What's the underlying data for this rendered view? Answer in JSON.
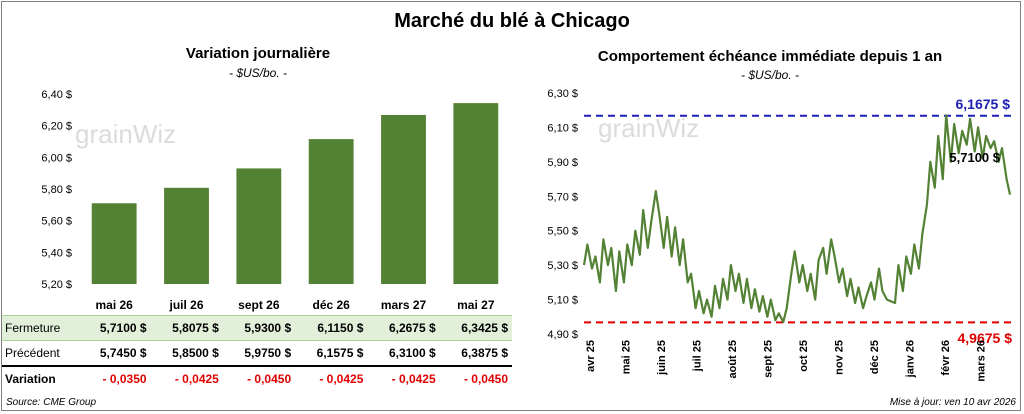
{
  "title": "Marché du blé à Chicago",
  "colors": {
    "bar": "#548235",
    "line": "#548235",
    "max_line": "#1f1fb4",
    "min_line": "#e00000",
    "fermeture_bg": "#e2efd9",
    "negative": "#e00000"
  },
  "watermark": {
    "left": "grainWiz",
    "right": "grainWiz"
  },
  "left_chart": {
    "title": "Variation journalière",
    "subtitle": "- $US/bo. -",
    "ticks": [
      "6,40 $",
      "6,20 $",
      "6,00 $",
      "5,80 $",
      "5,60 $",
      "5,40 $",
      "5,20 $"
    ]
  },
  "right_chart": {
    "title": "Comportement  échéance immédiate depuis 1 an",
    "subtitle": "- $US/bo. -",
    "ticks": [
      "6,30 $",
      "6,10 $",
      "5,90 $",
      "5,70 $",
      "5,50 $",
      "5,30 $",
      "5,10 $",
      "4,90 $"
    ],
    "max_label": "6,1675  $",
    "min_label": "4,9675  $",
    "last_label": "5,7100 $"
  },
  "chart_data": [
    {
      "type": "bar",
      "title": "Variation journalière",
      "subtitle": "- $US/bo. -",
      "categories": [
        "mai 26",
        "juil 26",
        "sept 26",
        "déc 26",
        "mars 27",
        "mai 27"
      ],
      "values": [
        5.71,
        5.8075,
        5.93,
        6.115,
        6.2675,
        6.3425
      ],
      "ylim": [
        5.2,
        6.4
      ],
      "grid": false
    },
    {
      "type": "line",
      "title": "Comportement  échéance immédiate depuis 1 an",
      "subtitle": "- $US/bo. -",
      "categories": [
        "avr 25",
        "mai 25",
        "juin 25",
        "juil 25",
        "août 25",
        "sept 25",
        "oct 25",
        "nov 25",
        "déc 25",
        "janv 26",
        "févr 26",
        "mars 26"
      ],
      "x_range": [
        "2025-04-01",
        "2026-04-10"
      ],
      "ylim": [
        4.9,
        6.3
      ],
      "max": 6.1675,
      "min": 4.9675,
      "last": 5.71,
      "series": [
        {
          "x": [
            "2025-04-01",
            "2025-04-04",
            "2025-04-08",
            "2025-04-11",
            "2025-04-15",
            "2025-04-18",
            "2025-04-22",
            "2025-04-25",
            "2025-04-29",
            "2025-05-02",
            "2025-05-06",
            "2025-05-09",
            "2025-05-13",
            "2025-05-16",
            "2025-05-20",
            "2025-05-23",
            "2025-05-27",
            "2025-05-30",
            "2025-06-03",
            "2025-06-06",
            "2025-06-10",
            "2025-06-13",
            "2025-06-17",
            "2025-06-20",
            "2025-06-24",
            "2025-06-27",
            "2025-07-01",
            "2025-07-04",
            "2025-07-08",
            "2025-07-11",
            "2025-07-15",
            "2025-07-18",
            "2025-07-22",
            "2025-07-25",
            "2025-07-29",
            "2025-08-01",
            "2025-08-05",
            "2025-08-08",
            "2025-08-12",
            "2025-08-15",
            "2025-08-19",
            "2025-08-22",
            "2025-08-26",
            "2025-08-29",
            "2025-09-02",
            "2025-09-05",
            "2025-09-09",
            "2025-09-12",
            "2025-09-16",
            "2025-09-19",
            "2025-09-23",
            "2025-09-26",
            "2025-09-30",
            "2025-10-03",
            "2025-10-07",
            "2025-10-10",
            "2025-10-14",
            "2025-10-17",
            "2025-10-21",
            "2025-10-24",
            "2025-10-28",
            "2025-10-31",
            "2025-11-04",
            "2025-11-07",
            "2025-11-11",
            "2025-11-14",
            "2025-11-18",
            "2025-11-21",
            "2025-11-25",
            "2025-11-28",
            "2025-12-02",
            "2025-12-05",
            "2025-12-09",
            "2025-12-12",
            "2025-12-16",
            "2025-12-19",
            "2025-12-23",
            "2025-12-30",
            "2026-01-02",
            "2026-01-06",
            "2026-01-09",
            "2026-01-13",
            "2026-01-16",
            "2026-01-20",
            "2026-01-23",
            "2026-01-27",
            "2026-01-30",
            "2026-02-03",
            "2026-02-06",
            "2026-02-10",
            "2026-02-13",
            "2026-02-17",
            "2026-02-20",
            "2026-02-24",
            "2026-02-27",
            "2026-03-03",
            "2026-03-06",
            "2026-03-10",
            "2026-03-13",
            "2026-03-17",
            "2026-03-20",
            "2026-03-24",
            "2026-03-27",
            "2026-03-31",
            "2026-04-03",
            "2026-04-07",
            "2026-04-10"
          ],
          "y": [
            5.3,
            5.42,
            5.28,
            5.35,
            5.2,
            5.45,
            5.3,
            5.4,
            5.15,
            5.38,
            5.2,
            5.42,
            5.3,
            5.5,
            5.36,
            5.62,
            5.4,
            5.55,
            5.73,
            5.6,
            5.4,
            5.58,
            5.35,
            5.52,
            5.3,
            5.45,
            5.2,
            5.25,
            5.05,
            5.15,
            5.02,
            5.1,
            5.0,
            5.18,
            5.05,
            5.22,
            5.1,
            5.3,
            5.15,
            5.25,
            5.08,
            5.22,
            5.05,
            5.16,
            5.03,
            5.12,
            5.0,
            5.1,
            4.98,
            5.02,
            4.97,
            5.05,
            5.25,
            5.38,
            5.2,
            5.3,
            5.15,
            5.25,
            5.1,
            5.33,
            5.4,
            5.25,
            5.45,
            5.35,
            5.2,
            5.28,
            5.12,
            5.22,
            5.08,
            5.17,
            5.05,
            5.12,
            5.2,
            5.1,
            5.28,
            5.15,
            5.1,
            5.08,
            5.3,
            5.15,
            5.35,
            5.25,
            5.42,
            5.28,
            5.48,
            5.65,
            5.9,
            5.75,
            6.05,
            5.8,
            6.17,
            5.9,
            6.12,
            5.95,
            6.08,
            6.0,
            6.15,
            5.96,
            6.1,
            5.92,
            6.05,
            5.98,
            6.02,
            5.9,
            5.98,
            5.8,
            5.71
          ]
        }
      ]
    }
  ],
  "table": {
    "rows": [
      {
        "label": "Fermeture",
        "values": [
          "5,7100  $",
          "5,8075  $",
          "5,9300  $",
          "6,1150  $",
          "6,2675  $",
          "6,3425  $"
        ]
      },
      {
        "label": "Précédent",
        "values": [
          "5,7450  $",
          "5,8500  $",
          "5,9750  $",
          "6,1575  $",
          "6,3100  $",
          "6,3875  $"
        ]
      },
      {
        "label": "Variation",
        "values": [
          "- 0,0350",
          "- 0,0425",
          "- 0,0450",
          "- 0,0425",
          "- 0,0425",
          "- 0,0450"
        ]
      }
    ]
  },
  "footer": {
    "source": "Source: CME Group",
    "updated": "Mise à jour: ven 10 avr 2026"
  }
}
